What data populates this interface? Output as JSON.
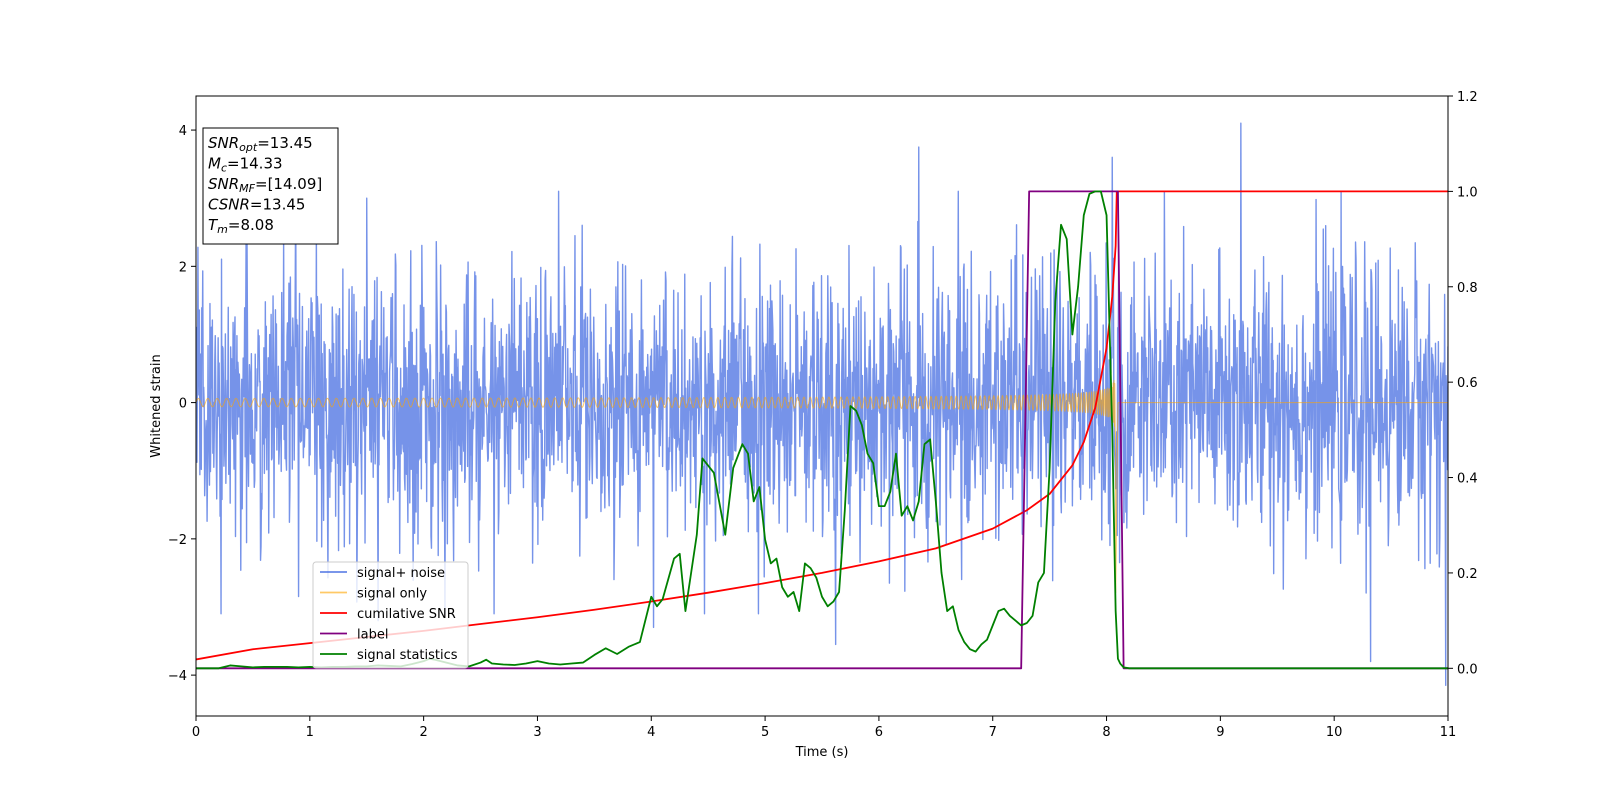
{
  "chart_data": {
    "type": "line",
    "xlabel": "Time (s)",
    "ylabel": "Whitened strain",
    "ylabel_right": "",
    "xlim": [
      0,
      11
    ],
    "ylim": [
      -4.6,
      4.5
    ],
    "ylim_right": [
      -0.1,
      1.2
    ],
    "xticks": [
      0,
      1,
      2,
      3,
      4,
      5,
      6,
      7,
      8,
      9,
      10,
      11
    ],
    "yticks": [
      -4,
      -2,
      0,
      2,
      4
    ],
    "yticks_right": [
      0.0,
      0.2,
      0.4,
      0.6,
      0.8,
      1.0,
      1.2
    ],
    "grid": false,
    "legend_position": "lower-left",
    "info_box": {
      "lines": [
        {
          "sym": "SNR",
          "sub": "opt",
          "value": "=13.45"
        },
        {
          "sym": "M",
          "sub": "c",
          "value": "=14.33"
        },
        {
          "sym": "SNR",
          "sub": "MF",
          "value": "=[14.09]"
        },
        {
          "sym": "CSNR",
          "sub": "",
          "value": "=13.45"
        },
        {
          "sym": "T",
          "sub": "m",
          "value": "=8.08"
        }
      ]
    },
    "series": [
      {
        "name": "signal+ noise",
        "axis": "left",
        "color": "#4169e1",
        "kind": "noise",
        "noise_std": 1.0,
        "notable_peaks": [
          [
            1.5,
            3.0
          ],
          [
            1.6,
            -3.2
          ],
          [
            4.02,
            -3.3
          ],
          [
            5.62,
            -3.55
          ],
          [
            6.35,
            3.75
          ],
          [
            8.05,
            3.6
          ],
          [
            9.18,
            4.1
          ],
          [
            10.32,
            -3.8
          ],
          [
            10.98,
            -4.15
          ]
        ]
      },
      {
        "name": "signal only",
        "axis": "left",
        "color": "#ffa500",
        "kind": "chirp",
        "t_merge": 8.08,
        "start_amplitude": 0.06,
        "peak_amplitude": 3.0
      },
      {
        "name": "cumilative SNR",
        "axis": "left",
        "color": "#ff0000",
        "x": [
          0,
          0.5,
          1,
          1.5,
          2,
          2.5,
          3,
          3.5,
          4,
          4.5,
          5,
          5.5,
          6,
          6.5,
          7,
          7.3,
          7.5,
          7.7,
          7.8,
          7.9,
          8.0,
          8.05,
          8.08,
          8.09,
          11
        ],
        "y": [
          -3.77,
          -3.62,
          -3.53,
          -3.44,
          -3.35,
          -3.25,
          -3.15,
          -3.04,
          -2.92,
          -2.79,
          -2.65,
          -2.5,
          -2.33,
          -2.14,
          -1.85,
          -1.58,
          -1.34,
          -0.92,
          -0.58,
          -0.08,
          0.8,
          1.55,
          2.3,
          3.1,
          3.1
        ]
      },
      {
        "name": "label",
        "axis": "right",
        "color": "#800080",
        "x": [
          0,
          7.25,
          7.32,
          8.1,
          8.15,
          11
        ],
        "y": [
          0,
          0,
          1,
          1,
          0,
          0
        ]
      },
      {
        "name": "signal statistics",
        "axis": "right",
        "color": "#008000",
        "x": [
          0,
          0.1,
          0.2,
          0.3,
          0.4,
          0.5,
          0.6,
          0.7,
          0.8,
          0.9,
          1.0,
          1.1,
          1.2,
          1.3,
          1.4,
          1.5,
          1.6,
          1.7,
          1.8,
          1.9,
          2.0,
          2.05,
          2.1,
          2.2,
          2.3,
          2.4,
          2.5,
          2.55,
          2.6,
          2.7,
          2.8,
          2.9,
          3.0,
          3.1,
          3.2,
          3.3,
          3.4,
          3.5,
          3.6,
          3.7,
          3.8,
          3.9,
          4.0,
          4.05,
          4.1,
          4.2,
          4.25,
          4.3,
          4.4,
          4.45,
          4.55,
          4.65,
          4.72,
          4.8,
          4.85,
          4.9,
          4.95,
          5.0,
          5.05,
          5.1,
          5.15,
          5.2,
          5.25,
          5.3,
          5.35,
          5.4,
          5.45,
          5.5,
          5.55,
          5.6,
          5.65,
          5.7,
          5.75,
          5.8,
          5.85,
          5.9,
          5.95,
          6.0,
          6.05,
          6.1,
          6.15,
          6.2,
          6.25,
          6.3,
          6.35,
          6.4,
          6.45,
          6.5,
          6.55,
          6.6,
          6.65,
          6.7,
          6.75,
          6.8,
          6.85,
          6.9,
          6.95,
          7.0,
          7.05,
          7.1,
          7.15,
          7.2,
          7.25,
          7.3,
          7.35,
          7.4,
          7.45,
          7.5,
          7.55,
          7.6,
          7.65,
          7.7,
          7.75,
          7.8,
          7.85,
          7.9,
          7.95,
          8.0,
          8.05,
          8.08,
          8.1,
          8.12,
          8.15,
          8.2,
          8.3,
          8.5,
          9,
          10,
          11
        ],
        "y": [
          0.0,
          0.0,
          0.0,
          0.006,
          0.004,
          0.002,
          0.003,
          0.003,
          0.003,
          0.002,
          0.003,
          0.002,
          0.003,
          0.003,
          0.004,
          0.004,
          0.006,
          0.005,
          0.004,
          0.009,
          0.015,
          0.02,
          0.018,
          0.012,
          0.006,
          0.004,
          0.012,
          0.018,
          0.01,
          0.008,
          0.007,
          0.01,
          0.015,
          0.01,
          0.008,
          0.01,
          0.012,
          0.028,
          0.042,
          0.03,
          0.045,
          0.055,
          0.15,
          0.13,
          0.145,
          0.23,
          0.24,
          0.12,
          0.28,
          0.44,
          0.41,
          0.28,
          0.42,
          0.47,
          0.45,
          0.35,
          0.38,
          0.27,
          0.22,
          0.23,
          0.17,
          0.15,
          0.16,
          0.12,
          0.22,
          0.21,
          0.19,
          0.15,
          0.13,
          0.14,
          0.16,
          0.33,
          0.55,
          0.54,
          0.51,
          0.45,
          0.43,
          0.34,
          0.34,
          0.37,
          0.45,
          0.32,
          0.34,
          0.31,
          0.35,
          0.47,
          0.48,
          0.35,
          0.2,
          0.12,
          0.13,
          0.08,
          0.055,
          0.04,
          0.035,
          0.05,
          0.06,
          0.09,
          0.12,
          0.125,
          0.11,
          0.1,
          0.09,
          0.095,
          0.11,
          0.18,
          0.2,
          0.42,
          0.77,
          0.93,
          0.9,
          0.7,
          0.8,
          0.95,
          0.995,
          1.0,
          1.0,
          0.95,
          0.5,
          0.12,
          0.02,
          0.01,
          0.002,
          0.0,
          0.0,
          0.0,
          0.0,
          0.0,
          0.0
        ]
      }
    ]
  }
}
